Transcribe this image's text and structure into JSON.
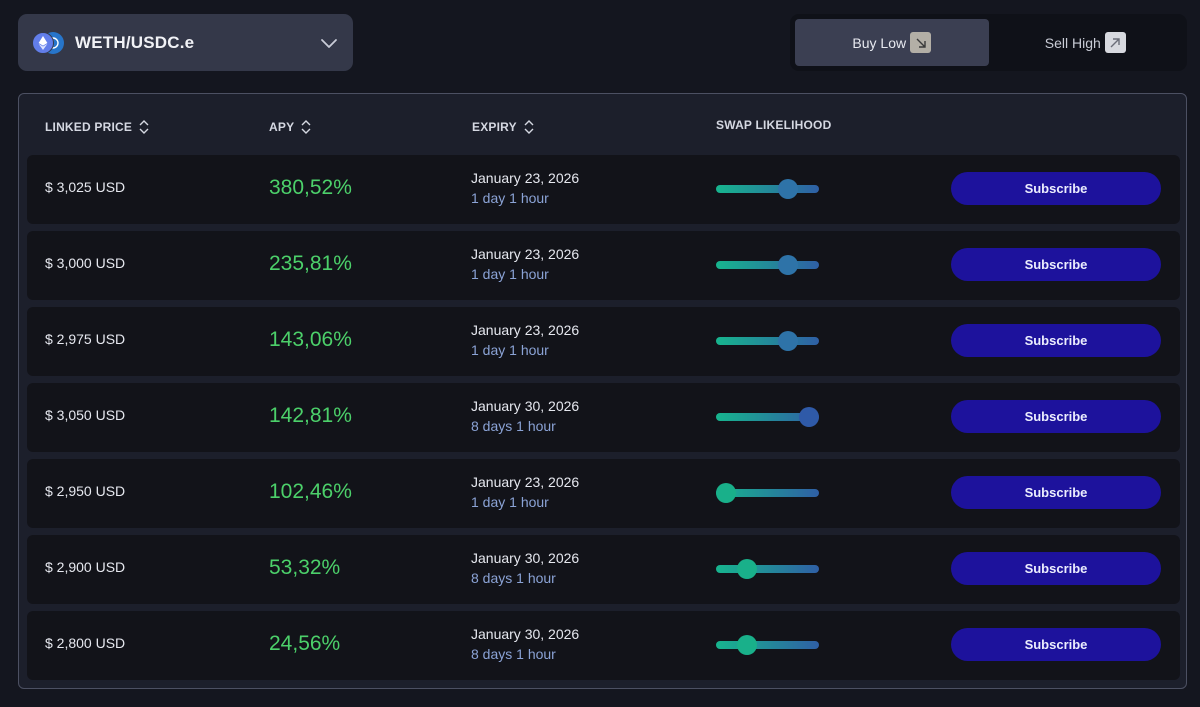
{
  "pair": {
    "label": "WETH/USDC.e",
    "icons": [
      "eth-icon",
      "usdc-icon"
    ]
  },
  "mode": {
    "options": [
      {
        "label": "Buy Low",
        "icon": "arrow-down-right-icon",
        "active": true
      },
      {
        "label": "Sell High",
        "icon": "arrow-up-right-icon",
        "active": false
      }
    ]
  },
  "table": {
    "headers": {
      "linked_price": "LINKED PRICE",
      "apy": "APY",
      "expiry": "EXPIRY",
      "swap_likelihood": "SWAP LIKELIHOOD"
    },
    "subscribe_label": "Subscribe",
    "rows": [
      {
        "price": "$ 3,025 USD",
        "apy": "380,52%",
        "expiry_date": "January 23, 2026",
        "remaining": "1 day 1 hour",
        "likelihood": 0.7
      },
      {
        "price": "$ 3,000 USD",
        "apy": "235,81%",
        "expiry_date": "January 23, 2026",
        "remaining": "1 day 1 hour",
        "likelihood": 0.7
      },
      {
        "price": "$ 2,975 USD",
        "apy": "143,06%",
        "expiry_date": "January 23, 2026",
        "remaining": "1 day 1 hour",
        "likelihood": 0.7
      },
      {
        "price": "$ 3,050 USD",
        "apy": "142,81%",
        "expiry_date": "January 30, 2026",
        "remaining": "8 days 1 hour",
        "likelihood": 0.9
      },
      {
        "price": "$ 2,950 USD",
        "apy": "102,46%",
        "expiry_date": "January 23, 2026",
        "remaining": "1 day 1 hour",
        "likelihood": 0.1
      },
      {
        "price": "$ 2,900 USD",
        "apy": "53,32%",
        "expiry_date": "January 30, 2026",
        "remaining": "8 days 1 hour",
        "likelihood": 0.3
      },
      {
        "price": "$ 2,800 USD",
        "apy": "24,56%",
        "expiry_date": "January 30, 2026",
        "remaining": "8 days 1 hour",
        "likelihood": 0.3
      }
    ]
  },
  "colors": {
    "apy_green": "#4cd06a",
    "subscribe_bg": "#1d129c",
    "slider_start": "#17b58e",
    "slider_end": "#2f5fa5"
  }
}
